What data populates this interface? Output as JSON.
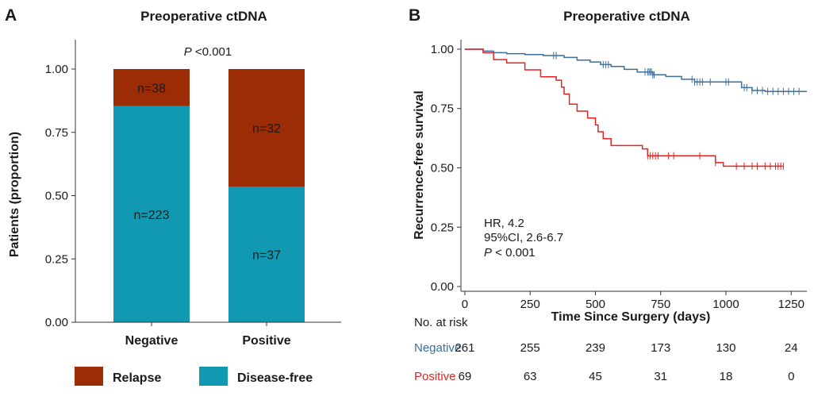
{
  "colors": {
    "relapse": "#9b2c05",
    "disease_free": "#1199b1",
    "negative": "#3a6f9e",
    "positive": "#e52320",
    "axis": "#333333"
  },
  "panel_a": {
    "letter": "A",
    "title": "Preoperative ctDNA",
    "p_symbol": "P",
    "p_rest": " <0.001",
    "legend": [
      "Relapse",
      "Disease-free"
    ]
  },
  "panel_b": {
    "letter": "B",
    "title": "Preoperative ctDNA",
    "stats": {
      "hr": "HR, 4.2",
      "ci": "95%CI, 2.6-6.7",
      "p_symbol": "P",
      "p_rest": " < 0.001"
    },
    "risk_table": {
      "title": "No. at risk",
      "rows": [
        {
          "label": "Negative",
          "values": [
            "261",
            "255",
            "239",
            "173",
            "130",
            "24"
          ]
        },
        {
          "label": "Positive",
          "values": [
            "69",
            "63",
            "45",
            "31",
            "18",
            "0"
          ]
        }
      ]
    }
  },
  "chart_data": [
    {
      "type": "bar",
      "stacked": true,
      "title": "Preoperative ctDNA",
      "xlabel": "",
      "ylabel": "Patients (proportion)",
      "categories": [
        "Negative",
        "Positive"
      ],
      "ylim": [
        0,
        1
      ],
      "yticks": [
        "0.00",
        "0.25",
        "0.50",
        "0.75",
        "1.00"
      ],
      "series": [
        {
          "name": "Disease-free",
          "values": [
            0.854,
            0.536
          ],
          "labels": [
            "n=223",
            "n=37"
          ]
        },
        {
          "name": "Relapse",
          "values": [
            0.146,
            0.464
          ],
          "labels": [
            "n=38",
            "n=32"
          ]
        }
      ],
      "legend_position": "bottom",
      "annotation": "P <0.001"
    },
    {
      "type": "line",
      "step": true,
      "title": "Preoperative ctDNA",
      "xlabel": "Time Since Surgery (days)",
      "ylabel": "Recurrence-free survival",
      "xlim": [
        -15,
        1310
      ],
      "ylim": [
        -0.02,
        1.04
      ],
      "xticks": [
        "0",
        "250",
        "500",
        "750",
        "1000",
        "1250"
      ],
      "yticks": [
        "0.00",
        "0.25",
        "0.50",
        "0.75",
        "1.00"
      ],
      "grid": false,
      "series": [
        {
          "name": "Negative",
          "x": [
            0,
            70,
            110,
            160,
            230,
            300,
            380,
            430,
            480,
            520,
            560,
            610,
            660,
            720,
            770,
            830,
            880,
            950,
            1060,
            1100,
            1150,
            1310
          ],
          "y": [
            1.0,
            0.992,
            0.985,
            0.981,
            0.977,
            0.973,
            0.965,
            0.954,
            0.946,
            0.935,
            0.927,
            0.915,
            0.904,
            0.892,
            0.885,
            0.873,
            0.862,
            0.862,
            0.838,
            0.826,
            0.822,
            0.822
          ],
          "censor_x": [
            340,
            350,
            530,
            540,
            550,
            690,
            700,
            705,
            710,
            715,
            720,
            725,
            870,
            880,
            890,
            900,
            910,
            940,
            1000,
            1010,
            1070,
            1080,
            1100,
            1120,
            1140,
            1160,
            1180,
            1200,
            1220,
            1240,
            1260,
            1280
          ]
        },
        {
          "name": "Positive",
          "x": [
            0,
            70,
            110,
            160,
            230,
            290,
            350,
            370,
            380,
            400,
            430,
            470,
            500,
            510,
            530,
            560,
            600,
            680,
            700,
            940,
            960,
            990,
            1220
          ],
          "y": [
            1.0,
            0.985,
            0.956,
            0.942,
            0.913,
            0.884,
            0.869,
            0.84,
            0.811,
            0.768,
            0.739,
            0.71,
            0.681,
            0.652,
            0.623,
            0.594,
            0.594,
            0.58,
            0.551,
            0.551,
            0.522,
            0.507,
            0.507
          ],
          "censor_x": [
            700,
            710,
            720,
            730,
            740,
            780,
            800,
            900,
            960,
            1040,
            1070,
            1100,
            1120,
            1150,
            1170,
            1190,
            1200,
            1210,
            1220
          ]
        }
      ],
      "annotations": [
        "HR, 4.2",
        "95%CI, 2.6-6.7",
        "P < 0.001"
      ]
    }
  ]
}
